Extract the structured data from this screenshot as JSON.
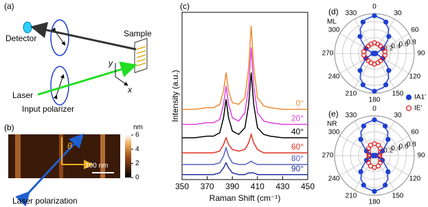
{
  "diagram": {
    "label": "(a)",
    "detector": "Detector",
    "sample": "Sample",
    "laser": "Laser",
    "polarizer": "Input polarizer",
    "axis_y": "y",
    "axis_x": "x"
  },
  "image": {
    "label": "(b)",
    "unit": "nm",
    "colorbar_lim": [
      0,
      6
    ],
    "colorbar_ticks": [
      0,
      2,
      4,
      6
    ],
    "scale_bar": "100 nm",
    "angle": "θ",
    "caption": "Laser polarization"
  },
  "chart_data": [
    {
      "type": "spectra",
      "panel_label": "(c)",
      "xlabel": "Raman Shift (cm⁻¹)",
      "ylabel": "Intensity (a.u.)",
      "x": [
        350,
        360,
        370,
        375,
        380,
        383,
        385,
        387,
        390,
        395,
        400,
        403,
        405,
        407,
        410,
        415,
        420,
        430,
        440,
        450
      ],
      "xlim": [
        350,
        450
      ],
      "xticks": [
        350,
        370,
        390,
        410,
        430,
        450
      ],
      "ylim": [
        0,
        10
      ],
      "series": [
        {
          "name": "0°",
          "color": "#f08a30",
          "values": [
            4.2,
            4.2,
            4.3,
            4.3,
            4.5,
            5.3,
            6.4,
            5.3,
            4.6,
            4.5,
            4.9,
            6.7,
            9.2,
            6.7,
            4.9,
            4.4,
            4.3,
            4.2,
            4.2,
            4.2
          ]
        },
        {
          "name": "20°",
          "color": "#e040e0",
          "values": [
            3.3,
            3.3,
            3.4,
            3.4,
            3.6,
            4.5,
            5.6,
            4.5,
            3.7,
            3.5,
            4.0,
            5.6,
            7.9,
            5.6,
            4.0,
            3.5,
            3.4,
            3.3,
            3.3,
            3.3
          ]
        },
        {
          "name": "40°",
          "color": "#000000",
          "values": [
            2.5,
            2.5,
            2.6,
            2.6,
            2.8,
            3.7,
            4.8,
            3.7,
            2.9,
            2.7,
            3.1,
            4.5,
            6.4,
            4.5,
            3.1,
            2.7,
            2.6,
            2.5,
            2.5,
            2.5
          ]
        },
        {
          "name": "60°",
          "color": "#e03020",
          "values": [
            1.6,
            1.6,
            1.6,
            1.6,
            1.7,
            2.1,
            2.5,
            2.1,
            1.8,
            1.7,
            1.8,
            2.2,
            2.7,
            2.2,
            1.8,
            1.6,
            1.6,
            1.6,
            1.6,
            1.6
          ]
        },
        {
          "name": "80°",
          "color": "#5060c0",
          "values": [
            0.9,
            0.9,
            0.9,
            0.9,
            1.0,
            1.4,
            1.9,
            1.4,
            1.0,
            0.9,
            0.9,
            1.0,
            1.1,
            1.0,
            0.9,
            0.9,
            0.9,
            0.9,
            0.9,
            0.9
          ]
        },
        {
          "name": "90°",
          "color": "#2030a0",
          "values": [
            0.3,
            0.3,
            0.3,
            0.3,
            0.4,
            0.7,
            1.0,
            0.7,
            0.4,
            0.3,
            0.3,
            0.4,
            0.4,
            0.4,
            0.3,
            0.3,
            0.3,
            0.3,
            0.3,
            0.3
          ]
        }
      ]
    },
    {
      "type": "polar",
      "panel_label": "(d)",
      "label": "ML",
      "rlim": [
        0,
        1
      ],
      "rticks": [
        0.2,
        0.4,
        0.6,
        0.8
      ],
      "thetaticks": [
        0,
        30,
        60,
        90,
        120,
        150,
        180,
        210,
        240,
        270,
        300,
        330
      ],
      "legend": "lower right",
      "series": [
        {
          "name": "IA1'",
          "color": "#1f3fd0",
          "marker": "filled",
          "theta": [
            0,
            20,
            40,
            60,
            80,
            100,
            120,
            140,
            160,
            180,
            200,
            220,
            240,
            260,
            280,
            300,
            320,
            340
          ],
          "values": [
            0.95,
            0.84,
            0.56,
            0.24,
            0.03,
            0.03,
            0.24,
            0.56,
            0.84,
            0.95,
            0.84,
            0.56,
            0.24,
            0.03,
            0.03,
            0.24,
            0.56,
            0.84
          ]
        },
        {
          "name": "IE'",
          "color": "#e02020",
          "marker": "open",
          "theta": [
            0,
            20,
            40,
            60,
            80,
            100,
            120,
            140,
            160,
            180,
            200,
            220,
            240,
            260,
            280,
            300,
            320,
            340
          ],
          "values": [
            0.27,
            0.25,
            0.24,
            0.25,
            0.27,
            0.27,
            0.25,
            0.24,
            0.25,
            0.27,
            0.25,
            0.24,
            0.25,
            0.27,
            0.27,
            0.25,
            0.24,
            0.25
          ]
        },
        {
          "color": "#1f3fd0",
          "marker": "line",
          "theta": [
            0,
            15,
            30,
            45,
            60,
            75,
            90,
            105,
            120,
            135,
            150,
            165,
            180,
            195,
            210,
            225,
            240,
            255,
            270,
            285,
            300,
            315,
            330,
            345
          ],
          "values": [
            0.95,
            0.886,
            0.713,
            0.475,
            0.238,
            0.064,
            0,
            0.064,
            0.238,
            0.475,
            0.713,
            0.886,
            0.95,
            0.886,
            0.713,
            0.475,
            0.238,
            0.064,
            0,
            0.064,
            0.238,
            0.475,
            0.713,
            0.886
          ]
        }
      ]
    },
    {
      "type": "polar",
      "panel_label": "(e)",
      "label": "NR",
      "rlim": [
        0,
        1
      ],
      "rticks": [
        0.2,
        0.4,
        0.6,
        0.8
      ],
      "thetaticks": [
        0,
        30,
        60,
        90,
        120,
        150,
        180,
        210,
        240,
        270,
        300,
        330
      ],
      "series": [
        {
          "color": "#1f3fd0",
          "marker": "filled",
          "theta": [
            0,
            20,
            40,
            60,
            80,
            100,
            120,
            140,
            160,
            180,
            200,
            220,
            240,
            260,
            280,
            300,
            320,
            340
          ],
          "values": [
            0.9,
            0.79,
            0.53,
            0.23,
            0.03,
            0.03,
            0.23,
            0.53,
            0.79,
            0.9,
            0.79,
            0.53,
            0.23,
            0.03,
            0.03,
            0.23,
            0.53,
            0.79
          ]
        },
        {
          "color": "#e02020",
          "marker": "open",
          "theta": [
            0,
            20,
            40,
            60,
            80,
            100,
            120,
            140,
            160,
            180,
            200,
            220,
            240,
            260,
            280,
            300,
            320,
            340
          ],
          "values": [
            0.3,
            0.28,
            0.23,
            0.17,
            0.13,
            0.13,
            0.17,
            0.23,
            0.28,
            0.3,
            0.28,
            0.23,
            0.17,
            0.13,
            0.13,
            0.17,
            0.23,
            0.28
          ]
        },
        {
          "color": "#1f3fd0",
          "marker": "line",
          "theta": [
            0,
            15,
            30,
            45,
            60,
            75,
            90,
            105,
            120,
            135,
            150,
            165,
            180,
            195,
            210,
            225,
            240,
            255,
            270,
            285,
            300,
            315,
            330,
            345
          ],
          "values": [
            0.9,
            0.84,
            0.68,
            0.45,
            0.23,
            0.06,
            0,
            0.06,
            0.23,
            0.45,
            0.68,
            0.84,
            0.9,
            0.84,
            0.68,
            0.45,
            0.23,
            0.06,
            0,
            0.06,
            0.23,
            0.45,
            0.68,
            0.84
          ]
        }
      ]
    }
  ]
}
